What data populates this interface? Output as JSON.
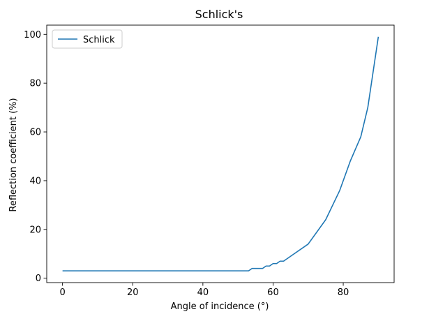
{
  "chart_data": {
    "type": "line",
    "title": "Schlick's",
    "xlabel": "Angle of incidence (°)",
    "ylabel": "Reflection coefficient (%)",
    "xlim": [
      -4.5,
      94.5
    ],
    "ylim": [
      -1.8,
      103.8
    ],
    "x_ticks": [
      0,
      20,
      40,
      60,
      80
    ],
    "y_ticks": [
      0,
      20,
      40,
      60,
      80,
      100
    ],
    "grid": false,
    "legend_position": "upper left",
    "series": [
      {
        "name": "Schlick",
        "color": "#1f77b4",
        "x": [
          0,
          53,
          54,
          57,
          58,
          59,
          60,
          61,
          62,
          63,
          65,
          70,
          75,
          79,
          82,
          85,
          87,
          90
        ],
        "y": [
          3,
          3,
          4,
          4,
          5,
          5,
          6,
          6,
          7,
          7,
          9,
          14,
          24,
          36,
          48,
          58,
          70,
          99
        ]
      }
    ]
  }
}
